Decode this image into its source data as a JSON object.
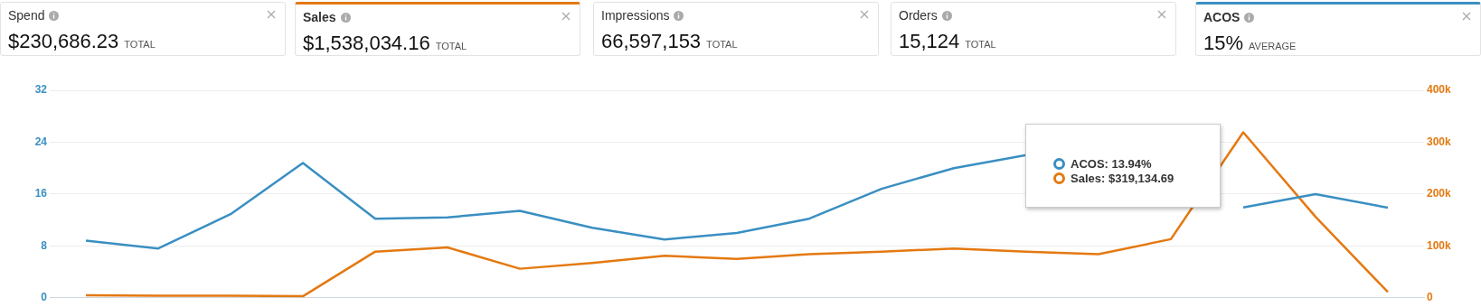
{
  "chart_data": [
    {
      "type": "other",
      "title": "Spend",
      "annotations": [
        "$230,686.23",
        "TOTAL"
      ]
    },
    {
      "type": "other",
      "title": "Sales",
      "color": "#e47911",
      "annotations": [
        "$1,538,034.16",
        "TOTAL"
      ]
    },
    {
      "type": "other",
      "title": "Impressions",
      "annotations": [
        "66,597,153",
        "TOTAL"
      ]
    },
    {
      "type": "other",
      "title": "Orders",
      "annotations": [
        "15,124",
        "TOTAL"
      ]
    },
    {
      "type": "other",
      "title": "ACOS",
      "color": "#3a8fc2",
      "annotations": [
        "15%",
        "AVERAGE"
      ]
    },
    {
      "type": "line",
      "categories": [
        null,
        null,
        null,
        null,
        null,
        null,
        null,
        null,
        null,
        null,
        null,
        null,
        null,
        null,
        null,
        null,
        null,
        null,
        null
      ],
      "series": [
        {
          "name": "ACOS:",
          "color": "#3a8fc2",
          "values": [
            8.8,
            7.6,
            12.9,
            20.8,
            12.2,
            12.4,
            13.4,
            10.8,
            9.0,
            10.0,
            12.2,
            16.8,
            20.0,
            22.0,
            null,
            null,
            13.94,
            16.0,
            13.9
          ]
        },
        {
          "name": "Sales:",
          "color": "#e47911",
          "axis": "y2",
          "values": [
            5000,
            4000,
            4000,
            3000,
            89000,
            97000,
            56000,
            67000,
            81000,
            75000,
            84000,
            89000,
            95000,
            89000,
            84000,
            113000,
            319134.69,
            156000,
            11000
          ]
        }
      ],
      "ylim": [
        0,
        32
      ],
      "yticks": [
        0,
        8,
        16,
        24,
        32
      ],
      "y2lim": [
        0,
        400000
      ],
      "y2ticks": [
        {
          "value": 0,
          "label": "0"
        },
        {
          "value": 100000,
          "label": "100k"
        },
        {
          "value": 200000,
          "label": "200k"
        },
        {
          "value": 300000,
          "label": "300k"
        },
        {
          "value": 400000,
          "label": "400k"
        }
      ],
      "grid": "y",
      "tick_labels": "y",
      "marker": "none",
      "legend": "top right",
      "annotations": [
        "13.94%",
        "$319,134.69"
      ]
    }
  ]
}
